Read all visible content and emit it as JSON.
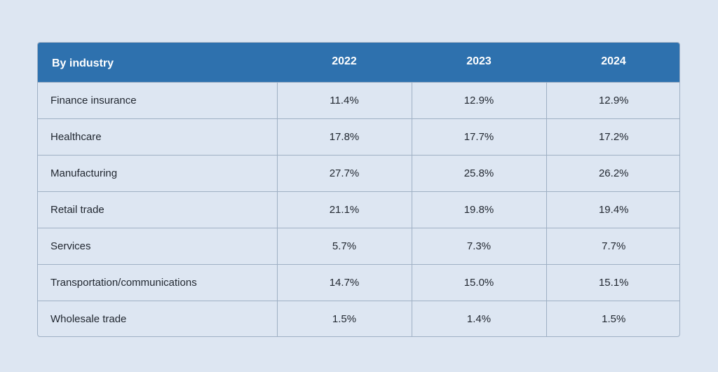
{
  "table": {
    "header": {
      "industry": "By industry",
      "years": [
        "2022",
        "2023",
        "2024"
      ]
    },
    "rows": [
      {
        "industry": "Finance insurance",
        "values": [
          "11.4%",
          "12.9%",
          "12.9%"
        ]
      },
      {
        "industry": "Healthcare",
        "values": [
          "17.8%",
          "17.7%",
          "17.2%"
        ]
      },
      {
        "industry": "Manufacturing",
        "values": [
          "27.7%",
          "25.8%",
          "26.2%"
        ]
      },
      {
        "industry": "Retail trade",
        "values": [
          "21.1%",
          "19.8%",
          "19.4%"
        ]
      },
      {
        "industry": "Services",
        "values": [
          "5.7%",
          "7.3%",
          "7.7%"
        ]
      },
      {
        "industry": "Transportation/communications",
        "values": [
          "14.7%",
          "15.0%",
          "15.1%"
        ]
      },
      {
        "industry": "Wholesale trade",
        "values": [
          "1.5%",
          "1.4%",
          "1.5%"
        ]
      }
    ]
  },
  "colors": {
    "header_background": "#2e71ae",
    "page_background": "#dde6f2",
    "border": "#9fb0c4",
    "text": "#222831"
  }
}
